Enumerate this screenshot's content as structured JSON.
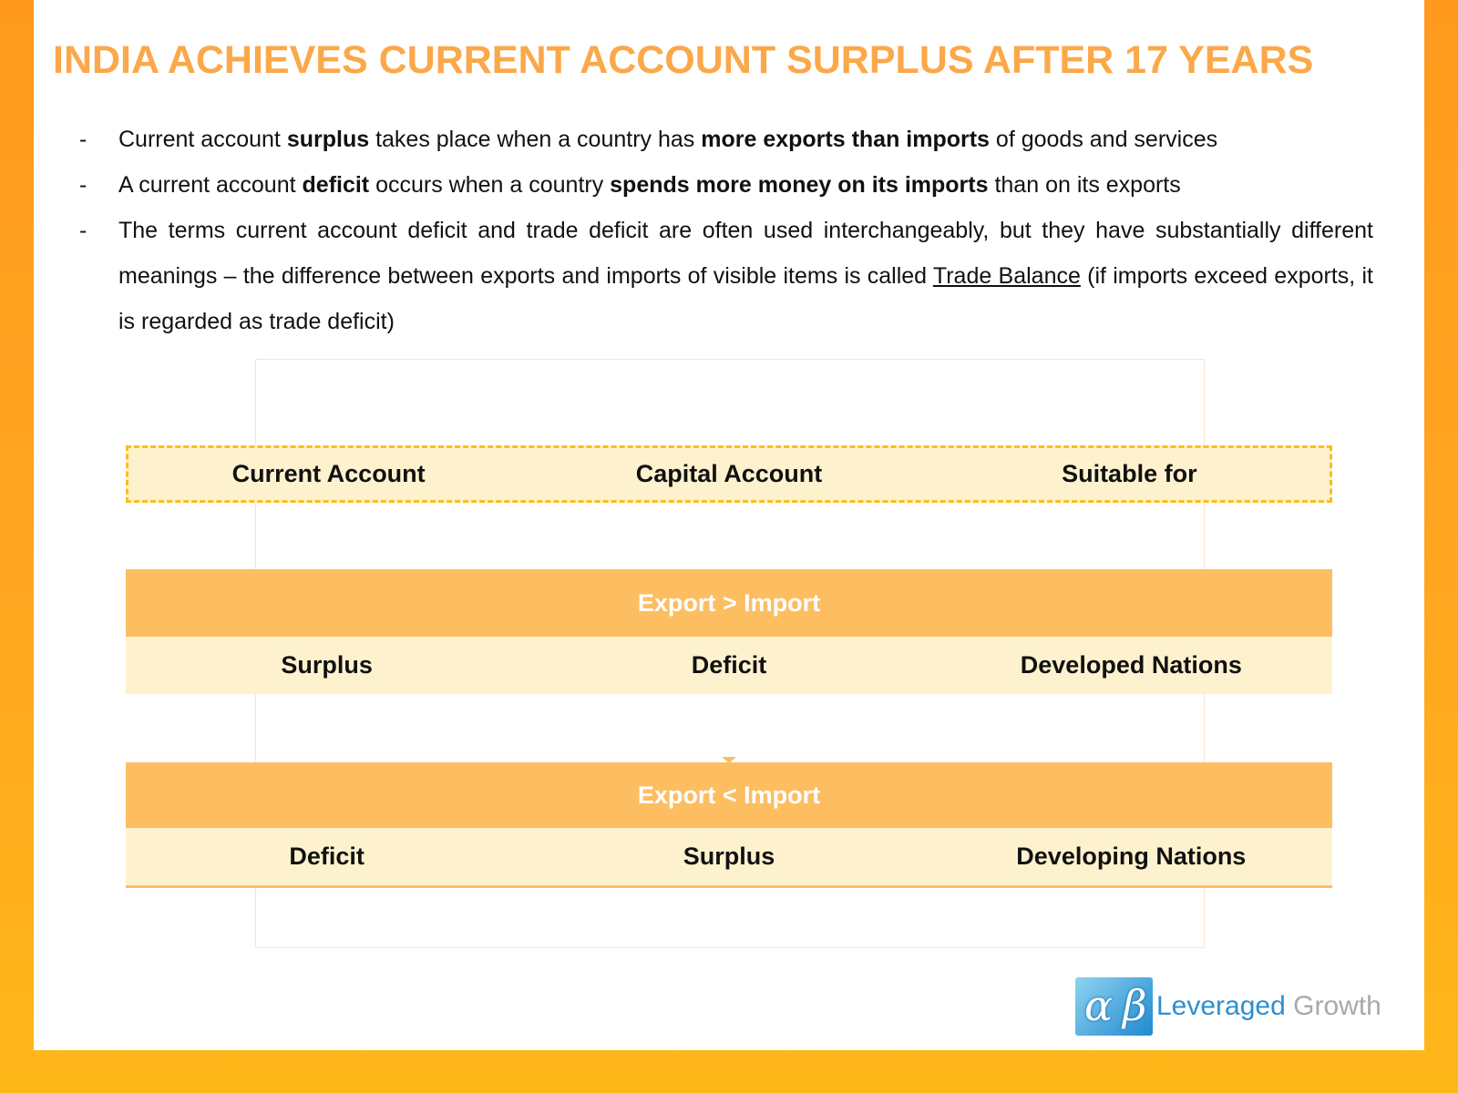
{
  "title": "INDIA ACHIEVES CURRENT ACCOUNT SURPLUS AFTER 17 YEARS",
  "bullets": [
    {
      "dash": "-",
      "parts": [
        "Current account ",
        "surplus",
        " takes place when a country has ",
        "more exports than imports",
        " of goods and services"
      ]
    },
    {
      "dash": "-",
      "parts": [
        "A current account ",
        "deficit",
        " occurs when a country ",
        "spends more money on its imports",
        " than on its exports"
      ]
    },
    {
      "dash": "-",
      "parts": [
        "The terms current account deficit and trade deficit are often used interchangeably, but they have substantially different meanings – the difference between exports and imports of visible items is called ",
        "Trade Balance",
        " (if imports exceed exports, it is regarded as trade deficit)"
      ]
    }
  ],
  "table": {
    "headers": [
      "Current Account",
      "Capital Account",
      "Suitable for"
    ],
    "groups": [
      {
        "label": "Export > Import",
        "cells": [
          "Surplus",
          "Deficit",
          "Developed Nations"
        ]
      },
      {
        "label": "Export < Import",
        "cells": [
          "Deficit",
          "Surplus",
          "Developing Nations"
        ]
      }
    ]
  },
  "logo": {
    "alpha": "α",
    "beta": "β",
    "word1": "Leveraged",
    "word2": "Growth"
  },
  "colors": {
    "title": "#fba84a",
    "band": "#fdbe62",
    "row": "#fef2ce",
    "dash": "#fdbd1c",
    "frame": "#ffa520"
  }
}
